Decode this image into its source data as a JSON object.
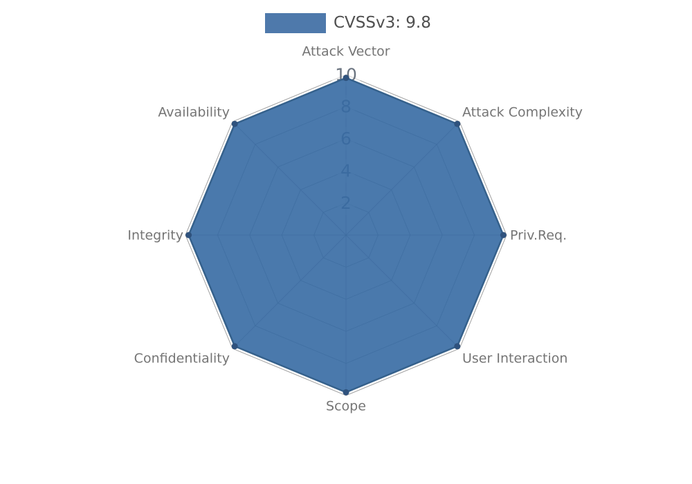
{
  "page": {
    "background": "#ffffff"
  },
  "legend": {
    "label": "CVSSv3: 9.8",
    "swatch_color": "#4e79ab"
  },
  "chart_data": {
    "type": "radar",
    "title": "",
    "axes": [
      "Attack Vector",
      "Attack Complexity",
      "Priv.Req.",
      "User Interaction",
      "Scope",
      "Confidentiality",
      "Integrity",
      "Availability"
    ],
    "series": [
      {
        "name": "CVSSv3: 9.8",
        "values": [
          9.8,
          9.8,
          9.8,
          9.8,
          9.8,
          9.8,
          9.8,
          9.8
        ]
      }
    ],
    "ticks": [
      2,
      4,
      6,
      8,
      10
    ],
    "max": 10,
    "grid": "polygon",
    "legend_position": "top-center",
    "colors": {
      "fill": "#366aa3",
      "fill_opacity": 0.9,
      "stroke": "#35618c",
      "marker": "#2f527d",
      "grid": "#8a8a8a",
      "axis_label": "#757575",
      "tick_label": "#6b7480",
      "tick_box": "#ffffff",
      "legend_text": "#4f4f4f"
    }
  }
}
